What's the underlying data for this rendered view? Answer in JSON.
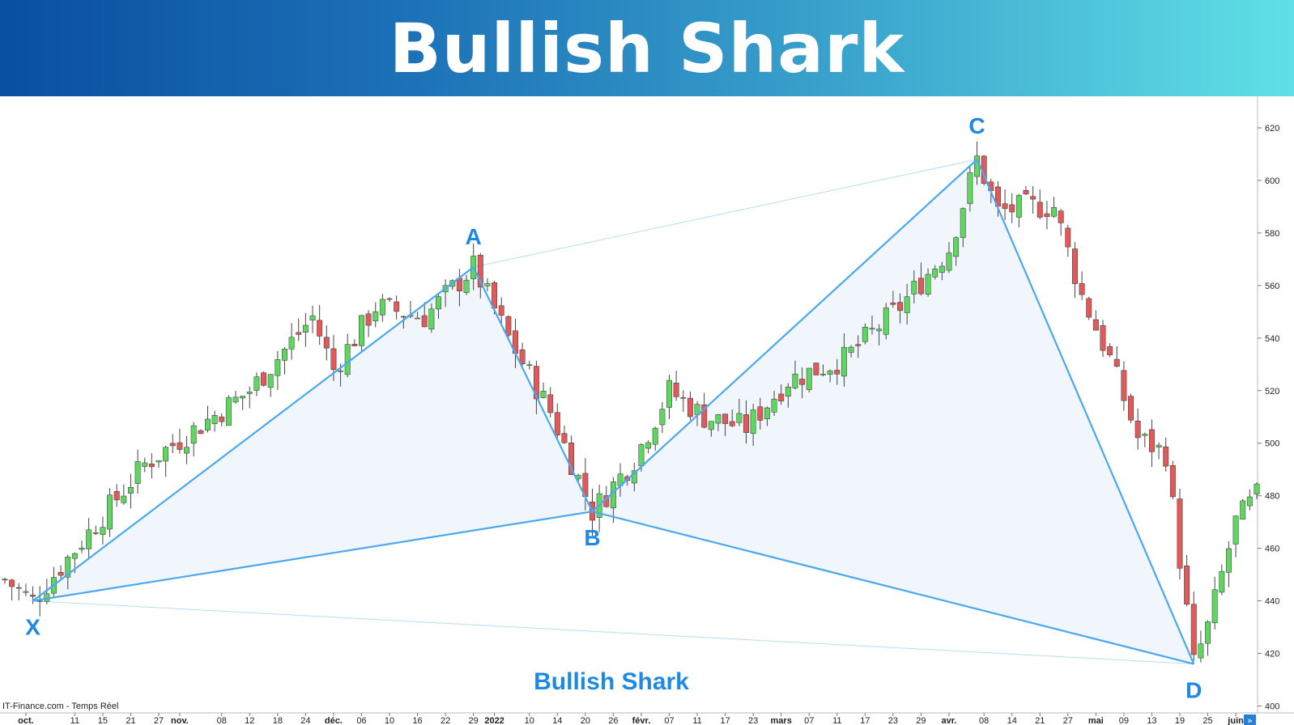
{
  "header": {
    "title": "Bullish Shark"
  },
  "chart_data": {
    "type": "candlestick",
    "title": "Bullish Shark",
    "source": "IT-Finance.com - Temps Réel",
    "ylim": [
      398,
      632
    ],
    "y_ticks": [
      400,
      420,
      440,
      460,
      480,
      500,
      520,
      540,
      560,
      580,
      600,
      620
    ],
    "x_ticks": [
      {
        "label": "oct.",
        "idx": 3,
        "bold": true
      },
      {
        "label": "11",
        "idx": 10
      },
      {
        "label": "15",
        "idx": 14
      },
      {
        "label": "21",
        "idx": 18
      },
      {
        "label": "27",
        "idx": 22
      },
      {
        "label": "nov.",
        "idx": 25,
        "bold": true
      },
      {
        "label": "08",
        "idx": 31
      },
      {
        "label": "12",
        "idx": 35
      },
      {
        "label": "18",
        "idx": 39
      },
      {
        "label": "24",
        "idx": 43
      },
      {
        "label": "déc.",
        "idx": 47,
        "bold": true
      },
      {
        "label": "06",
        "idx": 51
      },
      {
        "label": "10",
        "idx": 55
      },
      {
        "label": "16",
        "idx": 59
      },
      {
        "label": "22",
        "idx": 63
      },
      {
        "label": "29",
        "idx": 67
      },
      {
        "label": "2022",
        "idx": 70,
        "bold": true
      },
      {
        "label": "10",
        "idx": 75
      },
      {
        "label": "14",
        "idx": 79
      },
      {
        "label": "20",
        "idx": 83
      },
      {
        "label": "26",
        "idx": 87
      },
      {
        "label": "févr.",
        "idx": 91,
        "bold": true
      },
      {
        "label": "07",
        "idx": 95
      },
      {
        "label": "11",
        "idx": 99
      },
      {
        "label": "17",
        "idx": 103
      },
      {
        "label": "23",
        "idx": 107
      },
      {
        "label": "mars",
        "idx": 111,
        "bold": true
      },
      {
        "label": "07",
        "idx": 115
      },
      {
        "label": "11",
        "idx": 119
      },
      {
        "label": "17",
        "idx": 123
      },
      {
        "label": "23",
        "idx": 127
      },
      {
        "label": "29",
        "idx": 131
      },
      {
        "label": "avr.",
        "idx": 135,
        "bold": true
      },
      {
        "label": "08",
        "idx": 140
      },
      {
        "label": "14",
        "idx": 144
      },
      {
        "label": "21",
        "idx": 148
      },
      {
        "label": "27",
        "idx": 152
      },
      {
        "label": "mai",
        "idx": 156,
        "bold": true
      },
      {
        "label": "09",
        "idx": 160
      },
      {
        "label": "13",
        "idx": 164
      },
      {
        "label": "19",
        "idx": 168
      },
      {
        "label": "25",
        "idx": 172
      },
      {
        "label": "juin",
        "idx": 176,
        "bold": true
      }
    ],
    "pattern_points": [
      {
        "label": "X",
        "idx": 4,
        "price": 440
      },
      {
        "label": "A",
        "idx": 67,
        "price": 567
      },
      {
        "label": "B",
        "idx": 84,
        "price": 474
      },
      {
        "label": "C",
        "idx": 139,
        "price": 608
      },
      {
        "label": "D",
        "idx": 170,
        "price": 416
      }
    ],
    "colors": {
      "up": "#5fd65f",
      "down": "#e05a5a",
      "pattern_line": "#4aa8f0",
      "pattern_fill": "#eef5fb",
      "wick": "#444444"
    }
  }
}
